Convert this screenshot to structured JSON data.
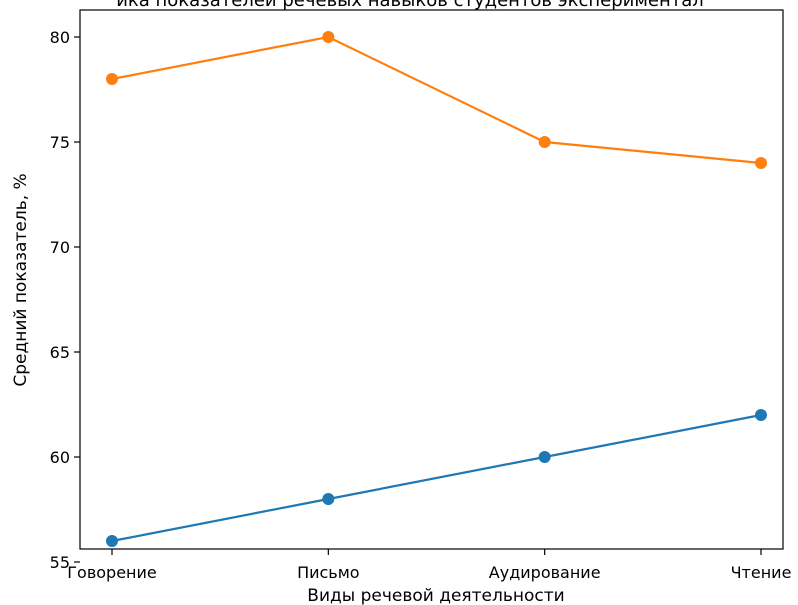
{
  "chart_data": {
    "type": "line",
    "title": "ика показателей речевых навыков студентов экспериментал",
    "xlabel": "Виды речевой деятельности",
    "ylabel": "Средний показатель, %",
    "categories": [
      "Говорение",
      "Письмо",
      "Аудирование",
      "Чтение"
    ],
    "ylim": [
      55,
      81
    ],
    "yticks": [
      55,
      60,
      65,
      70,
      75,
      80
    ],
    "grid": false,
    "series": [
      {
        "color": "#1f77b4",
        "values": [
          56,
          58,
          60,
          62
        ]
      },
      {
        "color": "#ff7f0e",
        "values": [
          78,
          80,
          75,
          74
        ]
      }
    ]
  }
}
